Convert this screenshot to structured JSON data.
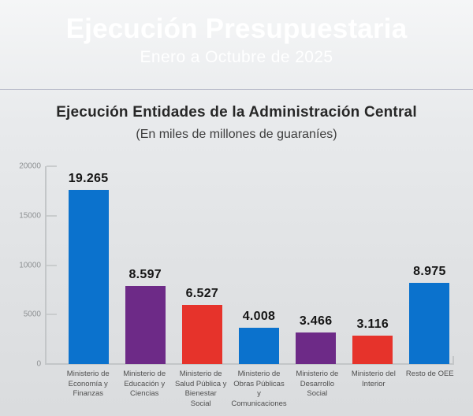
{
  "header": {
    "title": "Ejecución Presupuestaria",
    "subtitle": "Enero a Octubre de 2025"
  },
  "chart": {
    "title": "Ejecución Entidades de la Administración Central",
    "subtitle": "(En miles de millones de guaraníes)"
  },
  "chart_data": {
    "type": "bar",
    "title": "Ejecución Entidades de la Administración Central",
    "subtitle": "(En miles de millones de guaraníes)",
    "unit": "miles de millones de guaraníes",
    "categories": [
      "Ministerio de Economía y Finanzas",
      "Ministerio de Educación y Ciencias",
      "Ministerio de Salud Pública y Bienestar Social",
      "Ministerio de Obras Públicas y Comunicaciones",
      "Ministerio de Desarrollo Social",
      "Ministerio del Interior",
      "Resto de OEE"
    ],
    "values": [
      19265,
      8597,
      6527,
      4008,
      3466,
      3116,
      8975
    ],
    "value_labels": [
      "19.265",
      "8.597",
      "6.527",
      "4.008",
      "3.466",
      "3.116",
      "8.975"
    ],
    "bar_colors": [
      "#0b72cd",
      "#6d2a87",
      "#e6332b",
      "#0b72cd",
      "#6d2a87",
      "#e6332b",
      "#0b72cd"
    ],
    "ylim": [
      0,
      20000
    ],
    "yticks": [
      0,
      5000,
      10000,
      15000,
      20000
    ],
    "grid": false,
    "legend": false
  },
  "colors": {
    "accent_blue": "#0b72cd",
    "accent_purple": "#6d2a87",
    "accent_red": "#e6332b",
    "header_gradient_left": "#cf4640",
    "header_gradient_center": "#166ed1",
    "header_gradient_right": "#7e3a95",
    "background": "#e0e2e4",
    "axis": "#c3c6c8"
  }
}
